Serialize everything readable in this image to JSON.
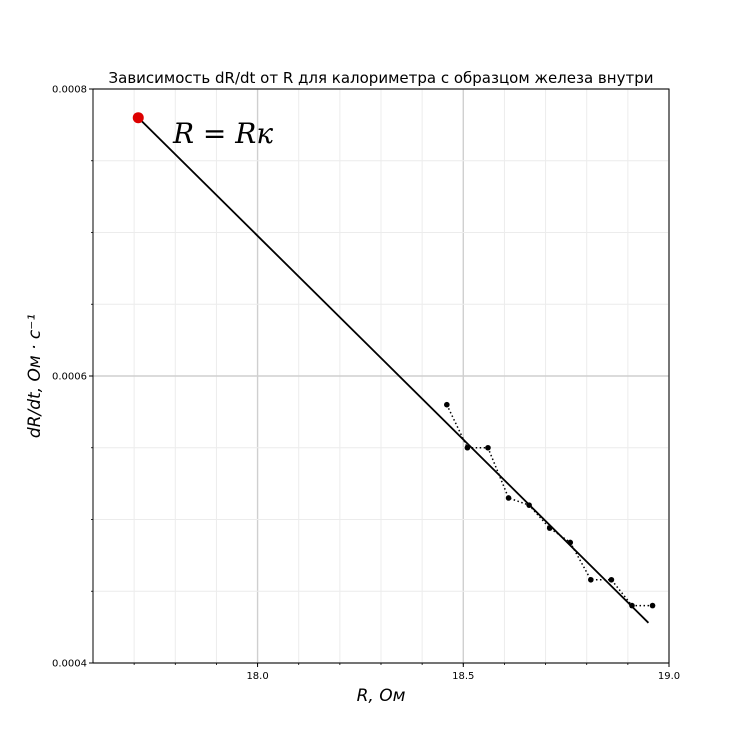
{
  "chart_data": {
    "type": "scatter",
    "title": "Зависимость dR/dt от R для калориметра с образцом железа внутри",
    "xlabel": "R, Ом",
    "ylabel": "dR/dt, Ом · с⁻¹",
    "xlim": [
      17.6,
      19.0
    ],
    "ylim": [
      0.0004,
      0.0008
    ],
    "xticks": [
      "18.0",
      "18.5",
      "19.0"
    ],
    "yticks": [
      "0.0004",
      "0.0006",
      "0.0008"
    ],
    "grid": true,
    "series": [
      {
        "style": "dotted-markers",
        "color": "#000000",
        "x": [
          18.46,
          18.51,
          18.56,
          18.61,
          18.66,
          18.71,
          18.76,
          18.81,
          18.86,
          18.91,
          18.96
        ],
        "y": [
          0.00058,
          0.00055,
          0.00055,
          0.000515,
          0.00051,
          0.000494,
          0.000484,
          0.000458,
          0.000458,
          0.00044,
          0.00044
        ]
      },
      {
        "style": "fit-line",
        "color": "#000000",
        "x": [
          17.71,
          18.95
        ],
        "y": [
          0.00078,
          0.000428
        ]
      },
      {
        "style": "highlight-point",
        "color": "#dd0000",
        "x": [
          17.71
        ],
        "y": [
          0.00078
        ]
      }
    ],
    "annotations": [
      {
        "text": "R = Rк",
        "x": 17.77,
        "y": 0.000772
      }
    ]
  }
}
